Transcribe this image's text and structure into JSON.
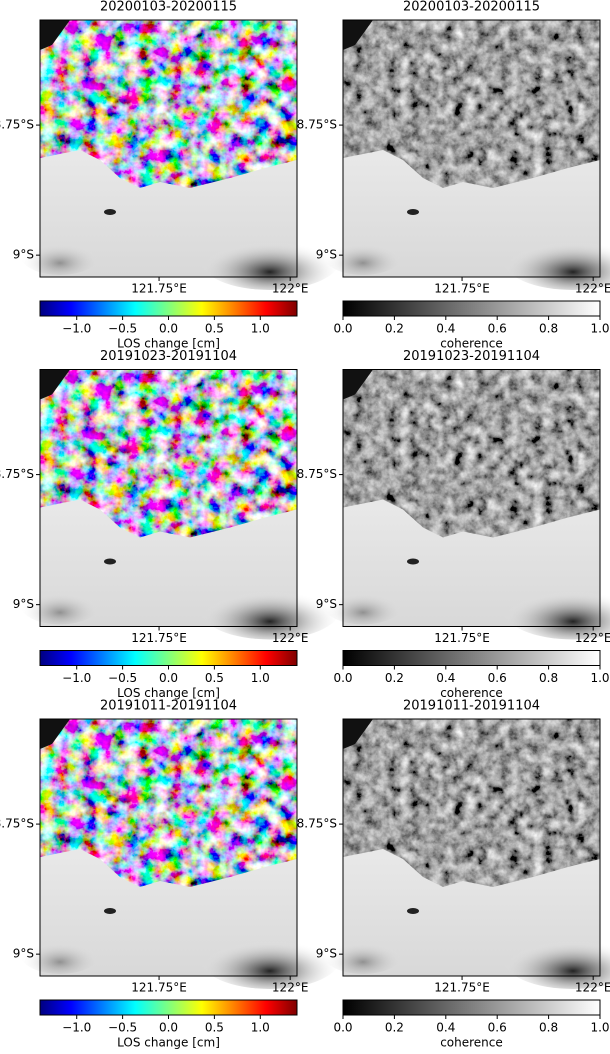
{
  "chart_data": [
    {
      "type": "image",
      "title": "20200103-20200115",
      "xlim": [
        121.523,
        122.013
      ],
      "ylim": [
        -9.042,
        -8.548
      ],
      "xticks": [
        {
          "value": 121.75,
          "label": "121.75°E"
        },
        {
          "value": 122,
          "label": "122°E"
        }
      ],
      "yticks": [
        {
          "value": -8.75,
          "label": "8.75°S"
        },
        {
          "value": -9,
          "label": "9°S"
        }
      ],
      "colorbar": {
        "label": "LOS change [cm]",
        "colormap": "jet",
        "lim": [
          -1.4,
          1.4
        ],
        "ticks": [
          {
            "value": -1,
            "label": "−1.0"
          },
          {
            "value": -0.5,
            "label": "−0.5"
          },
          {
            "value": 0,
            "label": "0.0"
          },
          0.5,
          {
            "value": 1,
            "label": "1.0"
          }
        ]
      }
    },
    {
      "type": "image",
      "title": "20200103-20200115",
      "xlim": [
        121.523,
        122.013
      ],
      "ylim": [
        -9.042,
        -8.548
      ],
      "xticks": [
        {
          "value": 121.75,
          "label": "121.75°E"
        },
        {
          "value": 122,
          "label": "122°E"
        }
      ],
      "yticks": [
        {
          "value": -8.75,
          "label": "8.75°S"
        },
        {
          "value": -9,
          "label": "9°S"
        }
      ],
      "colorbar": {
        "label": "coherence",
        "colormap": "gray",
        "lim": [
          0,
          1
        ],
        "ticks": [
          {
            "value": 0,
            "label": "0.0"
          },
          0.2,
          0.4,
          0.6,
          0.8,
          {
            "value": 1,
            "label": "1.0"
          }
        ]
      }
    },
    {
      "type": "image",
      "title": "20191023-20191104",
      "xlim": [
        121.523,
        122.013
      ],
      "ylim": [
        -9.042,
        -8.548
      ],
      "xticks": [
        {
          "value": 121.75,
          "label": "121.75°E"
        },
        {
          "value": 122,
          "label": "122°E"
        }
      ],
      "yticks": [
        {
          "value": -8.75,
          "label": "8.75°S"
        },
        {
          "value": -9,
          "label": "9°S"
        }
      ],
      "colorbar": {
        "label": "LOS change [cm]",
        "colormap": "jet",
        "lim": [
          -1.4,
          1.4
        ],
        "ticks": [
          {
            "value": -1,
            "label": "−1.0"
          },
          {
            "value": -0.5,
            "label": "−0.5"
          },
          {
            "value": 0,
            "label": "0.0"
          },
          0.5,
          {
            "value": 1,
            "label": "1.0"
          }
        ]
      }
    },
    {
      "type": "image",
      "title": "20191023-20191104",
      "xlim": [
        121.523,
        122.013
      ],
      "ylim": [
        -9.042,
        -8.548
      ],
      "xticks": [
        {
          "value": 121.75,
          "label": "121.75°E"
        },
        {
          "value": 122,
          "label": "122°E"
        }
      ],
      "yticks": [
        {
          "value": -8.75,
          "label": "8.75°S"
        },
        {
          "value": -9,
          "label": "9°S"
        }
      ],
      "colorbar": {
        "label": "coherence",
        "colormap": "gray",
        "lim": [
          0,
          1
        ],
        "ticks": [
          {
            "value": 0,
            "label": "0.0"
          },
          0.2,
          0.4,
          0.6,
          0.8,
          {
            "value": 1,
            "label": "1.0"
          }
        ]
      }
    },
    {
      "type": "image",
      "title": "20191011-20191104",
      "xlim": [
        121.523,
        122.013
      ],
      "ylim": [
        -9.042,
        -8.548
      ],
      "xticks": [
        {
          "value": 121.75,
          "label": "121.75°E"
        },
        {
          "value": 122,
          "label": "122°E"
        }
      ],
      "yticks": [
        {
          "value": -8.75,
          "label": "8.75°S"
        },
        {
          "value": -9,
          "label": "9°S"
        }
      ],
      "colorbar": {
        "label": "LOS change [cm]",
        "colormap": "jet",
        "lim": [
          -1.4,
          1.4
        ],
        "ticks": [
          {
            "value": -1,
            "label": "−1.0"
          },
          {
            "value": -0.5,
            "label": "−0.5"
          },
          {
            "value": 0,
            "label": "0.0"
          },
          0.5,
          {
            "value": 1,
            "label": "1.0"
          }
        ]
      }
    },
    {
      "type": "image",
      "title": "20191011-20191104",
      "xlim": [
        121.523,
        122.013
      ],
      "ylim": [
        -9.042,
        -8.548
      ],
      "xticks": [
        {
          "value": 121.75,
          "label": "121.75°E"
        },
        {
          "value": 122,
          "label": "122°E"
        }
      ],
      "yticks": [
        {
          "value": -8.75,
          "label": "8.75°S"
        },
        {
          "value": -9,
          "label": "9°S"
        }
      ],
      "colorbar": {
        "label": "coherence",
        "colormap": "gray",
        "lim": [
          0,
          1
        ],
        "ticks": [
          {
            "value": 0,
            "label": "0.0"
          },
          0.2,
          0.4,
          0.6,
          0.8,
          {
            "value": 1,
            "label": "1.0"
          }
        ]
      }
    }
  ]
}
